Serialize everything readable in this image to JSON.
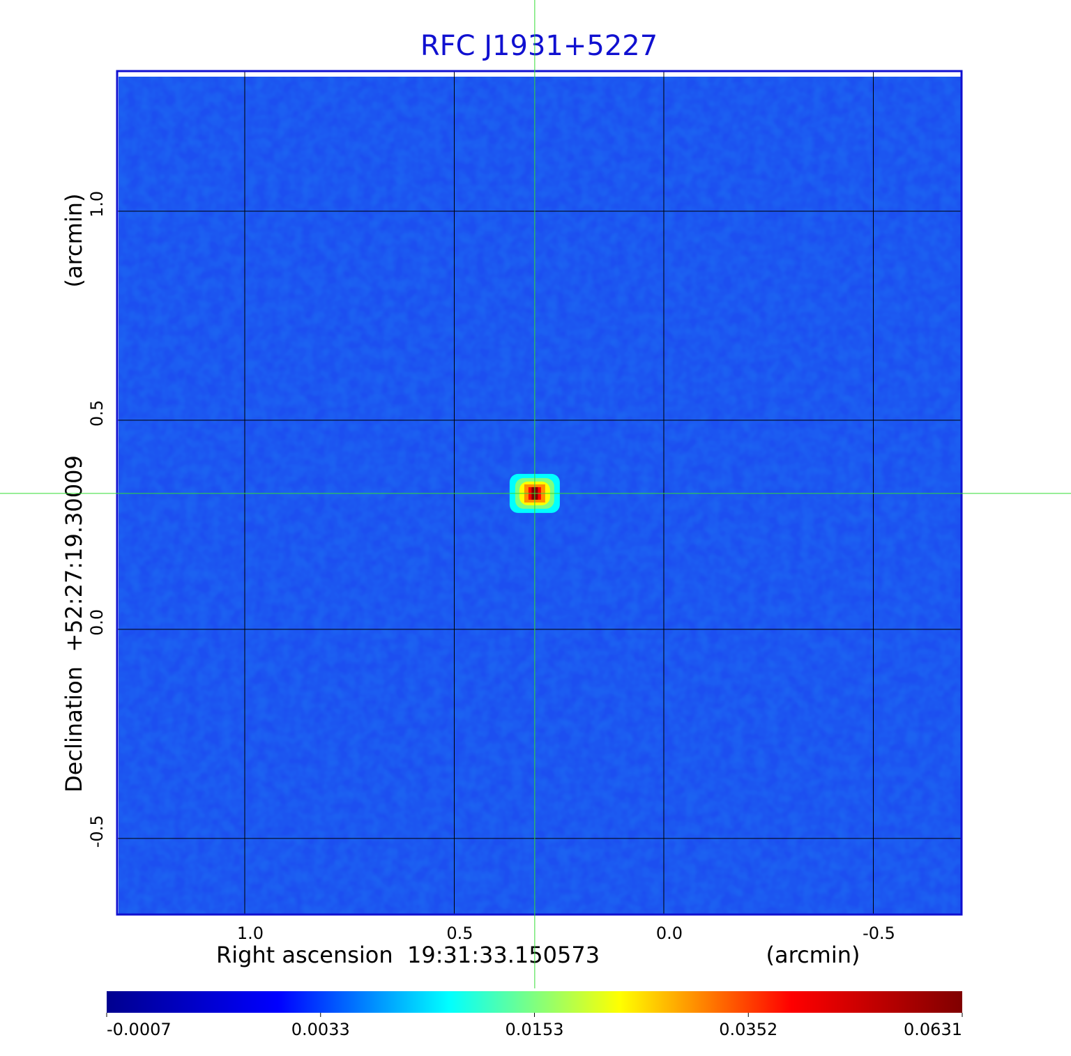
{
  "chart_data": {
    "type": "image",
    "title": "RFC J1931+5227",
    "x_label": "Right ascension  19:31:33.150573",
    "x_unit": "(arcmin)",
    "y_label": "Declination  +52:27:19.30009",
    "y_unit": "(arcmin)",
    "xlim": [
      1.3045,
      -0.7105
    ],
    "ylim": [
      -0.682,
      1.335
    ],
    "xticks": [
      {
        "value": 1,
        "label": "1.0"
      },
      0.5,
      {
        "value": 0,
        "label": "0.0"
      },
      -0.5
    ],
    "yticks": [
      {
        "value": 1,
        "label": "1.0"
      },
      0.5,
      {
        "value": 0,
        "label": "0.0"
      },
      -0.5
    ],
    "grid": true,
    "crosshair": {
      "x": 0.308,
      "y": 0.325
    },
    "colormap": [
      "#00008f",
      "#0000ff",
      "#00ffff",
      "#ffff00",
      "#ff0000",
      "#800000"
    ],
    "colorbar": {
      "lim": [
        -0.0007,
        0.0631
      ],
      "ticks": [
        -0.0007,
        0.0033,
        0.0153,
        0.0352,
        0.0631
      ]
    }
  }
}
